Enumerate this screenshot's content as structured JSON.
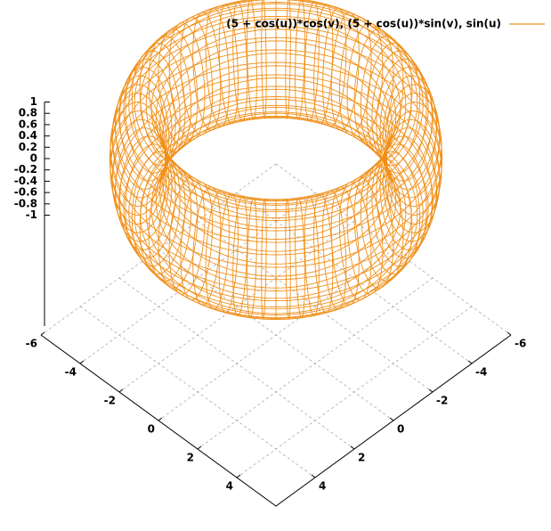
{
  "chart_data": {
    "type": "parametric_surface",
    "series": [
      {
        "name": "(5 + cos(u))*cos(v), (5 + cos(u))*sin(v), sin(u)",
        "color": "#f0901a"
      }
    ],
    "xlim": [
      -6,
      6
    ],
    "ylim": [
      -6,
      6
    ],
    "zlim": [
      -1,
      1
    ],
    "xticks": [
      -6,
      -4,
      -2,
      0,
      2,
      4
    ],
    "yticks": [
      -6,
      -4,
      -2,
      0,
      2,
      4
    ],
    "zticks": [
      1,
      0.8,
      0.6,
      0.4,
      0.2,
      0,
      -0.2,
      -0.4,
      -0.6,
      -0.8,
      -1
    ],
    "grid": true,
    "legend": "top-right"
  }
}
